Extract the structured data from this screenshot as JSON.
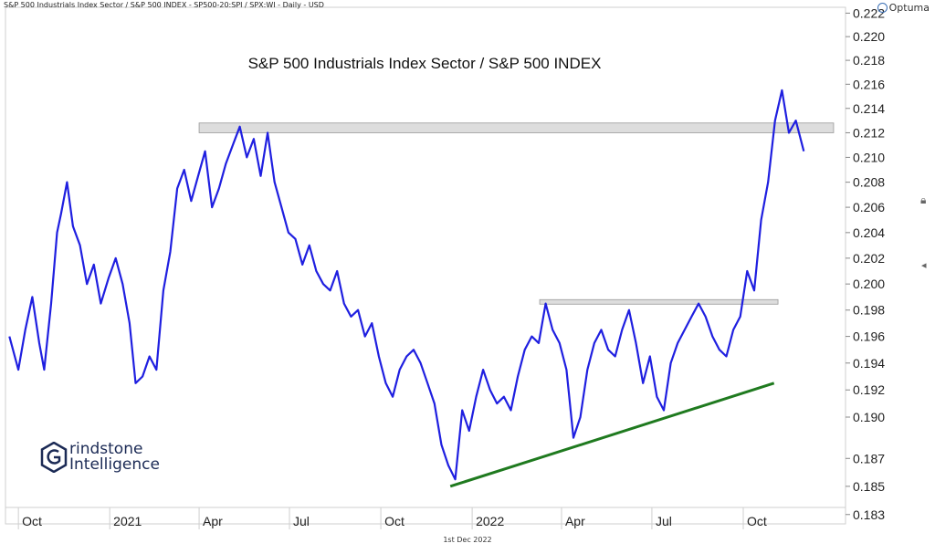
{
  "header": {
    "series_description": "S&P 500 Industrials Index Sector / S&P 500 INDEX - SP500-20:SPI / SPX:WI - Daily - USD"
  },
  "brand": {
    "name": "Optuma"
  },
  "footer": {
    "date": "1st Dec 2022"
  },
  "logo": {
    "line1": "rindstone",
    "line2": "Intelligence"
  },
  "chart_data": {
    "type": "line",
    "title": "S&P 500 Industrials Index Sector / S&P 500 INDEX",
    "xlabel": "",
    "ylabel": "",
    "x_ticks": [
      "Oct",
      "2021",
      "Apr",
      "Jul",
      "Oct",
      "2022",
      "Apr",
      "Jul",
      "Oct"
    ],
    "y_ticks": [
      "0.222",
      "0.220",
      "0.218",
      "0.216",
      "0.214",
      "0.212",
      "0.210",
      "0.208",
      "0.206",
      "0.204",
      "0.202",
      "0.200",
      "0.198",
      "0.196",
      "0.194",
      "0.192",
      "0.190",
      "0.187",
      "0.185",
      "0.183"
    ],
    "y_scale": "log",
    "ylim": [
      0.1835,
      0.2225
    ],
    "grid": false,
    "colors": {
      "line": "#1f1fe0",
      "resistance": "#d7d7d7",
      "trendline": "#1f7a1f"
    },
    "resistance_zones": [
      {
        "from": "2021-04-01",
        "to": "2022-12-31",
        "y_low": 0.212,
        "y_high": 0.2128
      },
      {
        "from": "2022-03-10",
        "to": "2022-11-05",
        "y_low": 0.1985,
        "y_high": 0.1988
      }
    ],
    "trendline": {
      "start": {
        "x": "2021-12-10",
        "y": 0.185
      },
      "end": {
        "x": "2022-11-01",
        "y": 0.1925
      }
    },
    "series": [
      {
        "values": [
          {
            "x": "2020-09-22",
            "y": 0.196
          },
          {
            "x": "2020-10-01",
            "y": 0.1935
          },
          {
            "x": "2020-10-08",
            "y": 0.1965
          },
          {
            "x": "2020-10-15",
            "y": 0.199
          },
          {
            "x": "2020-10-22",
            "y": 0.1955
          },
          {
            "x": "2020-10-27",
            "y": 0.1935
          },
          {
            "x": "2020-11-03",
            "y": 0.1985
          },
          {
            "x": "2020-11-09",
            "y": 0.204
          },
          {
            "x": "2020-11-13",
            "y": 0.2055
          },
          {
            "x": "2020-11-19",
            "y": 0.208
          },
          {
            "x": "2020-11-25",
            "y": 0.2045
          },
          {
            "x": "2020-12-02",
            "y": 0.203
          },
          {
            "x": "2020-12-09",
            "y": 0.2
          },
          {
            "x": "2020-12-16",
            "y": 0.2015
          },
          {
            "x": "2020-12-23",
            "y": 0.1985
          },
          {
            "x": "2020-12-31",
            "y": 0.2005
          },
          {
            "x": "2021-01-07",
            "y": 0.202
          },
          {
            "x": "2021-01-14",
            "y": 0.2
          },
          {
            "x": "2021-01-21",
            "y": 0.197
          },
          {
            "x": "2021-01-27",
            "y": 0.1925
          },
          {
            "x": "2021-02-03",
            "y": 0.193
          },
          {
            "x": "2021-02-10",
            "y": 0.1945
          },
          {
            "x": "2021-02-17",
            "y": 0.1935
          },
          {
            "x": "2021-02-24",
            "y": 0.1995
          },
          {
            "x": "2021-03-03",
            "y": 0.2025
          },
          {
            "x": "2021-03-10",
            "y": 0.2075
          },
          {
            "x": "2021-03-17",
            "y": 0.209
          },
          {
            "x": "2021-03-24",
            "y": 0.2065
          },
          {
            "x": "2021-03-31",
            "y": 0.2085
          },
          {
            "x": "2021-04-07",
            "y": 0.2105
          },
          {
            "x": "2021-04-14",
            "y": 0.206
          },
          {
            "x": "2021-04-21",
            "y": 0.2075
          },
          {
            "x": "2021-04-28",
            "y": 0.2095
          },
          {
            "x": "2021-05-05",
            "y": 0.211
          },
          {
            "x": "2021-05-12",
            "y": 0.2125
          },
          {
            "x": "2021-05-19",
            "y": 0.21
          },
          {
            "x": "2021-05-26",
            "y": 0.2115
          },
          {
            "x": "2021-06-02",
            "y": 0.2085
          },
          {
            "x": "2021-06-09",
            "y": 0.212
          },
          {
            "x": "2021-06-16",
            "y": 0.208
          },
          {
            "x": "2021-06-23",
            "y": 0.206
          },
          {
            "x": "2021-06-30",
            "y": 0.204
          },
          {
            "x": "2021-07-07",
            "y": 0.2035
          },
          {
            "x": "2021-07-14",
            "y": 0.2015
          },
          {
            "x": "2021-07-21",
            "y": 0.203
          },
          {
            "x": "2021-07-28",
            "y": 0.201
          },
          {
            "x": "2021-08-04",
            "y": 0.2
          },
          {
            "x": "2021-08-11",
            "y": 0.1995
          },
          {
            "x": "2021-08-18",
            "y": 0.201
          },
          {
            "x": "2021-08-25",
            "y": 0.1985
          },
          {
            "x": "2021-09-01",
            "y": 0.1975
          },
          {
            "x": "2021-09-08",
            "y": 0.198
          },
          {
            "x": "2021-09-15",
            "y": 0.196
          },
          {
            "x": "2021-09-22",
            "y": 0.197
          },
          {
            "x": "2021-09-29",
            "y": 0.1945
          },
          {
            "x": "2021-10-06",
            "y": 0.1925
          },
          {
            "x": "2021-10-13",
            "y": 0.1915
          },
          {
            "x": "2021-10-20",
            "y": 0.1935
          },
          {
            "x": "2021-10-27",
            "y": 0.1945
          },
          {
            "x": "2021-11-03",
            "y": 0.195
          },
          {
            "x": "2021-11-10",
            "y": 0.194
          },
          {
            "x": "2021-11-17",
            "y": 0.1925
          },
          {
            "x": "2021-11-24",
            "y": 0.191
          },
          {
            "x": "2021-12-01",
            "y": 0.188
          },
          {
            "x": "2021-12-08",
            "y": 0.1865
          },
          {
            "x": "2021-12-15",
            "y": 0.1855
          },
          {
            "x": "2021-12-22",
            "y": 0.1905
          },
          {
            "x": "2021-12-29",
            "y": 0.189
          },
          {
            "x": "2022-01-05",
            "y": 0.1915
          },
          {
            "x": "2022-01-12",
            "y": 0.1935
          },
          {
            "x": "2022-01-19",
            "y": 0.192
          },
          {
            "x": "2022-01-26",
            "y": 0.191
          },
          {
            "x": "2022-02-02",
            "y": 0.1915
          },
          {
            "x": "2022-02-09",
            "y": 0.1905
          },
          {
            "x": "2022-02-16",
            "y": 0.193
          },
          {
            "x": "2022-02-23",
            "y": 0.195
          },
          {
            "x": "2022-03-02",
            "y": 0.196
          },
          {
            "x": "2022-03-09",
            "y": 0.1955
          },
          {
            "x": "2022-03-16",
            "y": 0.1985
          },
          {
            "x": "2022-03-23",
            "y": 0.1965
          },
          {
            "x": "2022-03-30",
            "y": 0.1955
          },
          {
            "x": "2022-04-06",
            "y": 0.1935
          },
          {
            "x": "2022-04-13",
            "y": 0.1885
          },
          {
            "x": "2022-04-20",
            "y": 0.19
          },
          {
            "x": "2022-04-27",
            "y": 0.1935
          },
          {
            "x": "2022-05-04",
            "y": 0.1955
          },
          {
            "x": "2022-05-11",
            "y": 0.1965
          },
          {
            "x": "2022-05-18",
            "y": 0.195
          },
          {
            "x": "2022-05-25",
            "y": 0.1945
          },
          {
            "x": "2022-06-01",
            "y": 0.1965
          },
          {
            "x": "2022-06-08",
            "y": 0.198
          },
          {
            "x": "2022-06-15",
            "y": 0.1955
          },
          {
            "x": "2022-06-22",
            "y": 0.1925
          },
          {
            "x": "2022-06-29",
            "y": 0.1945
          },
          {
            "x": "2022-07-06",
            "y": 0.1915
          },
          {
            "x": "2022-07-13",
            "y": 0.1905
          },
          {
            "x": "2022-07-20",
            "y": 0.194
          },
          {
            "x": "2022-07-27",
            "y": 0.1955
          },
          {
            "x": "2022-08-03",
            "y": 0.1965
          },
          {
            "x": "2022-08-10",
            "y": 0.1975
          },
          {
            "x": "2022-08-17",
            "y": 0.1985
          },
          {
            "x": "2022-08-24",
            "y": 0.1975
          },
          {
            "x": "2022-08-31",
            "y": 0.196
          },
          {
            "x": "2022-09-07",
            "y": 0.195
          },
          {
            "x": "2022-09-14",
            "y": 0.1945
          },
          {
            "x": "2022-09-21",
            "y": 0.1965
          },
          {
            "x": "2022-09-28",
            "y": 0.1975
          },
          {
            "x": "2022-10-05",
            "y": 0.201
          },
          {
            "x": "2022-10-12",
            "y": 0.1995
          },
          {
            "x": "2022-10-19",
            "y": 0.205
          },
          {
            "x": "2022-10-26",
            "y": 0.208
          },
          {
            "x": "2022-11-02",
            "y": 0.213
          },
          {
            "x": "2022-11-09",
            "y": 0.2155
          },
          {
            "x": "2022-11-16",
            "y": 0.212
          },
          {
            "x": "2022-11-23",
            "y": 0.213
          },
          {
            "x": "2022-12-01",
            "y": 0.2105
          }
        ]
      }
    ]
  }
}
